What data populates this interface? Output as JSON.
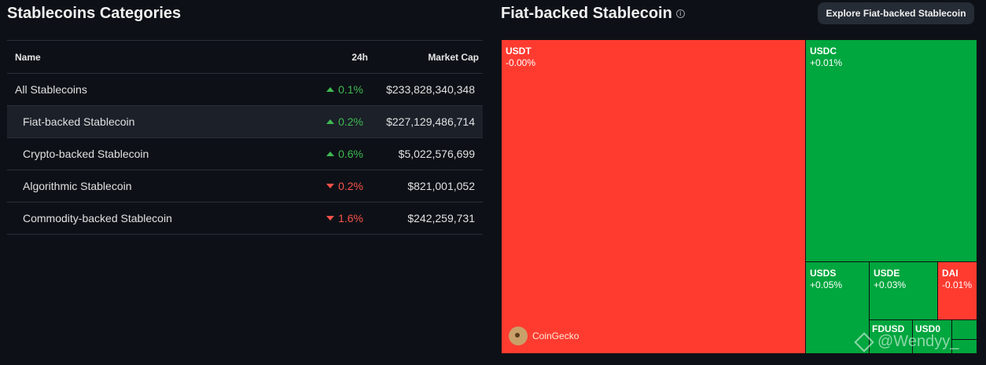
{
  "left": {
    "title": "Stablecoins Categories",
    "columns": {
      "name": "Name",
      "change": "24h",
      "cap": "Market Cap"
    },
    "rows": [
      {
        "name": "All Stablecoins",
        "change": "0.1%",
        "dir": "up",
        "cap": "$233,828,340,348"
      },
      {
        "name": "Fiat-backed Stablecoin",
        "change": "0.2%",
        "dir": "up",
        "cap": "$227,129,486,714"
      },
      {
        "name": "Crypto-backed Stablecoin",
        "change": "0.6%",
        "dir": "up",
        "cap": "$5,022,576,699"
      },
      {
        "name": "Algorithmic Stablecoin",
        "change": "0.2%",
        "dir": "down",
        "cap": "$821,001,052"
      },
      {
        "name": "Commodity-backed Stablecoin",
        "change": "1.6%",
        "dir": "down",
        "cap": "$242,259,731"
      }
    ]
  },
  "right": {
    "title": "Fiat-backed Stablecoin",
    "explore_label": "Explore Fiat-backed Stablecoin",
    "tiles": [
      {
        "sym": "USDT",
        "chg": "-0.00%"
      },
      {
        "sym": "USDC",
        "chg": "+0.01%"
      },
      {
        "sym": "USDS",
        "chg": "+0.05%"
      },
      {
        "sym": "USDE",
        "chg": "+0.03%"
      },
      {
        "sym": "DAI",
        "chg": "-0.01%"
      },
      {
        "sym": "FDUSD",
        "chg": ""
      },
      {
        "sym": "USD0",
        "chg": ""
      }
    ],
    "brand": "CoinGecko"
  },
  "watermark": "@Wendyy_",
  "colors": {
    "up": "#3fb950",
    "down": "#f85149",
    "tile_red": "#ff3b30",
    "tile_green": "#00a63e"
  }
}
